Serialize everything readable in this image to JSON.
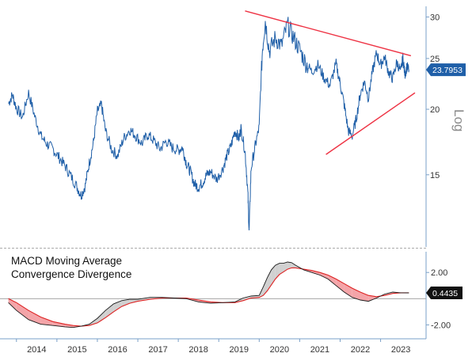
{
  "chart_data": [
    {
      "type": "line",
      "scale": "log",
      "axis_title": "Log",
      "ylim": [
        11,
        31
      ],
      "y_ticks": [
        "15",
        "20",
        "25",
        "30"
      ],
      "last_value": "23.7953",
      "colors": {
        "series": "#1f5fa8",
        "trendline": "#ee3344",
        "last_label_bg": "#1f5fa8"
      },
      "series": [
        {
          "points": [
            [
              2013.8,
              20.5
            ],
            [
              2013.9,
              21.3
            ],
            [
              2014.0,
              20.1
            ],
            [
              2014.15,
              19.3
            ],
            [
              2014.3,
              21.5
            ],
            [
              2014.45,
              19.4
            ],
            [
              2014.6,
              17.8
            ],
            [
              2014.75,
              17.2
            ],
            [
              2014.9,
              16.8
            ],
            [
              2015.05,
              16.2
            ],
            [
              2015.2,
              15.6
            ],
            [
              2015.35,
              14.9
            ],
            [
              2015.5,
              14.2
            ],
            [
              2015.6,
              13.7
            ],
            [
              2015.7,
              14.3
            ],
            [
              2015.8,
              15.8
            ],
            [
              2015.9,
              17.2
            ],
            [
              2016.0,
              19.8
            ],
            [
              2016.1,
              20.4
            ],
            [
              2016.2,
              18.2
            ],
            [
              2016.35,
              16.8
            ],
            [
              2016.5,
              16.3
            ],
            [
              2016.65,
              17.6
            ],
            [
              2016.8,
              18.3
            ],
            [
              2016.95,
              17.8
            ],
            [
              2017.1,
              17.2
            ],
            [
              2017.25,
              17.9
            ],
            [
              2017.4,
              17.4
            ],
            [
              2017.55,
              16.8
            ],
            [
              2017.7,
              17.4
            ],
            [
              2017.85,
              16.9
            ],
            [
              2018.0,
              16.7
            ],
            [
              2018.1,
              16.9
            ],
            [
              2018.2,
              15.8
            ],
            [
              2018.3,
              15.2
            ],
            [
              2018.4,
              14.4
            ],
            [
              2018.5,
              14.2
            ],
            [
              2018.6,
              14.5
            ],
            [
              2018.7,
              15.0
            ],
            [
              2018.8,
              15.2
            ],
            [
              2018.95,
              14.7
            ],
            [
              2019.1,
              15.4
            ],
            [
              2019.2,
              16.3
            ],
            [
              2019.3,
              17.0
            ],
            [
              2019.4,
              18.2
            ],
            [
              2019.5,
              17.6
            ],
            [
              2019.55,
              18.4
            ],
            [
              2019.65,
              16.6
            ],
            [
              2019.72,
              13.8
            ],
            [
              2019.75,
              11.6
            ],
            [
              2019.8,
              15.4
            ],
            [
              2019.9,
              17.0
            ],
            [
              2020.0,
              18.5
            ],
            [
              2020.08,
              26.0
            ],
            [
              2020.15,
              29.5
            ],
            [
              2020.25,
              25.8
            ],
            [
              2020.4,
              27.4
            ],
            [
              2020.55,
              26.4
            ],
            [
              2020.7,
              29.0
            ],
            [
              2020.85,
              27.4
            ],
            [
              2021.0,
              26.0
            ],
            [
              2021.15,
              24.5
            ],
            [
              2021.3,
              23.6
            ],
            [
              2021.45,
              24.3
            ],
            [
              2021.6,
              23.0
            ],
            [
              2021.75,
              22.2
            ],
            [
              2021.9,
              24.4
            ],
            [
              2022.0,
              22.4
            ],
            [
              2022.1,
              20.4
            ],
            [
              2022.2,
              18.2
            ],
            [
              2022.3,
              17.8
            ],
            [
              2022.4,
              19.2
            ],
            [
              2022.5,
              21.4
            ],
            [
              2022.6,
              22.6
            ],
            [
              2022.7,
              21.0
            ],
            [
              2022.8,
              23.6
            ],
            [
              2022.9,
              25.6
            ],
            [
              2023.0,
              24.3
            ],
            [
              2023.1,
              25.2
            ],
            [
              2023.2,
              23.5
            ],
            [
              2023.3,
              22.9
            ],
            [
              2023.4,
              24.6
            ],
            [
              2023.5,
              23.6
            ],
            [
              2023.55,
              25.1
            ],
            [
              2023.6,
              23.3
            ],
            [
              2023.65,
              24.1
            ],
            [
              2023.7,
              23.8
            ]
          ]
        }
      ],
      "trendlines": [
        {
          "x": [
            2019.65,
            2023.75
          ],
          "y": [
            30.8,
            25.3
          ]
        },
        {
          "x": [
            2021.65,
            2023.85
          ],
          "y": [
            16.4,
            21.5
          ]
        }
      ]
    },
    {
      "type": "area",
      "title_lines": [
        "MACD Moving Average",
        "Convergence Divergence"
      ],
      "ylim": [
        -2.7,
        3.1
      ],
      "y_ticks": [
        "2.00",
        "-2.00"
      ],
      "last_value": "0.4435",
      "colors": {
        "macd": "#1a1a1a",
        "signal": "#dd2222",
        "fill_positive": "#d0d0d0",
        "fill_negative": "#f4a4a8",
        "zero_line": "#999999"
      },
      "x": [
        2013.8,
        2014.0,
        2014.3,
        2014.6,
        2014.9,
        2015.2,
        2015.4,
        2015.6,
        2015.8,
        2016.0,
        2016.2,
        2016.4,
        2016.6,
        2016.8,
        2017.0,
        2017.3,
        2017.6,
        2017.9,
        2018.2,
        2018.5,
        2018.8,
        2019.1,
        2019.4,
        2019.6,
        2019.8,
        2020.0,
        2020.1,
        2020.2,
        2020.3,
        2020.4,
        2020.5,
        2020.6,
        2020.7,
        2020.8,
        2020.9,
        2021.1,
        2021.3,
        2021.5,
        2021.7,
        2021.9,
        2022.1,
        2022.3,
        2022.5,
        2022.7,
        2022.9,
        2023.1,
        2023.3,
        2023.5,
        2023.7
      ],
      "series": [
        {
          "role": "macd",
          "values": [
            -0.3,
            -0.9,
            -1.6,
            -1.95,
            -2.05,
            -2.15,
            -2.2,
            -2.1,
            -1.95,
            -1.5,
            -0.9,
            -0.4,
            -0.15,
            -0.05,
            -0.05,
            0.1,
            0.1,
            0.05,
            0.0,
            -0.25,
            -0.35,
            -0.3,
            -0.25,
            0.05,
            0.2,
            0.25,
            0.9,
            1.6,
            2.2,
            2.55,
            2.7,
            2.7,
            2.8,
            2.75,
            2.55,
            2.2,
            2.0,
            1.8,
            1.5,
            1.0,
            0.5,
            0.1,
            -0.1,
            -0.2,
            0.05,
            0.35,
            0.5,
            0.45,
            0.44
          ]
        },
        {
          "role": "signal",
          "values": [
            0.0,
            -0.3,
            -0.9,
            -1.4,
            -1.75,
            -1.95,
            -2.05,
            -2.1,
            -2.05,
            -1.85,
            -1.45,
            -1.0,
            -0.6,
            -0.35,
            -0.2,
            -0.05,
            0.05,
            0.05,
            0.05,
            -0.1,
            -0.25,
            -0.3,
            -0.3,
            -0.15,
            0.05,
            0.1,
            0.25,
            0.6,
            1.05,
            1.5,
            1.85,
            2.05,
            2.25,
            2.35,
            2.35,
            2.25,
            2.15,
            2.0,
            1.8,
            1.5,
            1.15,
            0.8,
            0.5,
            0.25,
            0.15,
            0.25,
            0.4,
            0.45,
            0.45
          ]
        }
      ]
    },
    {
      "type": "x_axis",
      "x_ticks": [
        "2014",
        "2015",
        "2016",
        "2017",
        "2018",
        "2019",
        "2020",
        "2021",
        "2022",
        "2023"
      ]
    }
  ]
}
